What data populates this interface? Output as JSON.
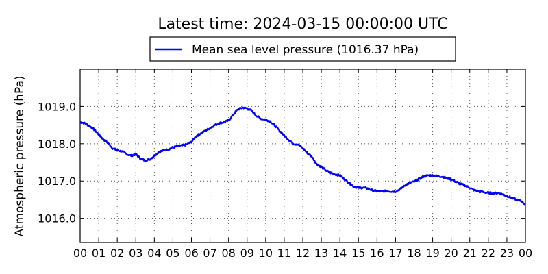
{
  "chart_data": {
    "type": "line",
    "title": "Latest time: 2024-03-15 00:00:00 UTC",
    "ylabel": "Atmospheric pressure (hPa)",
    "xlabel": "",
    "xlim": [
      0,
      24
    ],
    "ylim": [
      1015.35,
      1020.0
    ],
    "x_ticks": [
      "00",
      "01",
      "02",
      "03",
      "04",
      "05",
      "06",
      "07",
      "08",
      "09",
      "10",
      "11",
      "12",
      "13",
      "14",
      "15",
      "16",
      "17",
      "18",
      "19",
      "20",
      "21",
      "22",
      "23",
      "00"
    ],
    "y_ticks": [
      1016.0,
      1017.0,
      1018.0,
      1019.0
    ],
    "y_tick_labels": [
      "1016.0",
      "1017.0",
      "1018.0",
      "1019.0"
    ],
    "grid": true,
    "legend_position": "top-center",
    "series": [
      {
        "name": "Mean sea level pressure (1016.37 hPa)",
        "color": "#0000ff",
        "x": [
          0.0,
          0.25,
          0.5,
          0.75,
          1.0,
          1.25,
          1.5,
          1.75,
          2.0,
          2.25,
          2.5,
          2.75,
          3.0,
          3.25,
          3.5,
          3.75,
          4.0,
          4.25,
          4.5,
          4.75,
          5.0,
          5.25,
          5.5,
          5.75,
          6.0,
          6.25,
          6.5,
          6.75,
          7.0,
          7.25,
          7.5,
          7.75,
          8.0,
          8.25,
          8.5,
          8.75,
          9.0,
          9.25,
          9.5,
          9.75,
          10.0,
          10.25,
          10.5,
          10.75,
          11.0,
          11.25,
          11.5,
          11.75,
          12.0,
          12.25,
          12.5,
          12.75,
          13.0,
          13.25,
          13.5,
          13.75,
          14.0,
          14.25,
          14.5,
          14.75,
          15.0,
          15.25,
          15.5,
          15.75,
          16.0,
          16.25,
          16.5,
          16.75,
          17.0,
          17.25,
          17.5,
          17.75,
          18.0,
          18.25,
          18.5,
          18.75,
          19.0,
          19.25,
          19.5,
          19.75,
          20.0,
          20.25,
          20.5,
          20.75,
          21.0,
          21.25,
          21.5,
          21.75,
          22.0,
          22.25,
          22.5,
          22.75,
          23.0,
          23.25,
          23.5,
          23.75,
          24.0
        ],
        "values": [
          1018.58,
          1018.55,
          1018.48,
          1018.38,
          1018.25,
          1018.12,
          1018.02,
          1017.88,
          1017.82,
          1017.8,
          1017.72,
          1017.68,
          1017.72,
          1017.6,
          1017.55,
          1017.58,
          1017.68,
          1017.78,
          1017.82,
          1017.85,
          1017.9,
          1017.93,
          1017.95,
          1017.98,
          1018.05,
          1018.2,
          1018.28,
          1018.35,
          1018.42,
          1018.5,
          1018.55,
          1018.58,
          1018.62,
          1018.78,
          1018.92,
          1018.97,
          1018.95,
          1018.88,
          1018.75,
          1018.67,
          1018.65,
          1018.6,
          1018.48,
          1018.35,
          1018.22,
          1018.1,
          1018.0,
          1017.98,
          1017.88,
          1017.75,
          1017.65,
          1017.45,
          1017.38,
          1017.28,
          1017.22,
          1017.18,
          1017.15,
          1017.05,
          1016.95,
          1016.85,
          1016.82,
          1016.82,
          1016.8,
          1016.75,
          1016.73,
          1016.72,
          1016.73,
          1016.72,
          1016.72,
          1016.78,
          1016.88,
          1016.95,
          1016.98,
          1017.05,
          1017.12,
          1017.15,
          1017.15,
          1017.13,
          1017.12,
          1017.08,
          1017.05,
          1016.98,
          1016.92,
          1016.88,
          1016.82,
          1016.75,
          1016.72,
          1016.7,
          1016.68,
          1016.67,
          1016.68,
          1016.65,
          1016.6,
          1016.55,
          1016.5,
          1016.47,
          1016.37
        ]
      }
    ]
  }
}
